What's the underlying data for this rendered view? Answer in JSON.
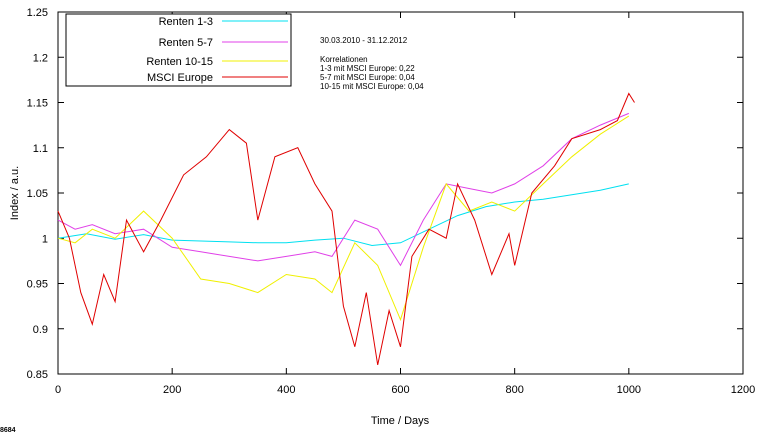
{
  "chart_data": {
    "type": "line",
    "xlabel": "Time / Days",
    "ylabel": "Index / a.u.",
    "xlim": [
      0,
      1200
    ],
    "ylim": [
      0.85,
      1.25
    ],
    "x_ticks": [
      0,
      200,
      400,
      600,
      800,
      1000,
      1200
    ],
    "y_ticks": [
      0.85,
      0.9,
      0.95,
      1,
      1.05,
      1.1,
      1.15,
      1.2,
      1.25
    ],
    "x_tick_labels": [
      "0",
      "200",
      "400",
      "600",
      "800",
      "1000",
      "1200"
    ],
    "y_tick_labels": [
      "0.85",
      "0.9",
      "0.95",
      "1",
      "1.05",
      "1.1",
      "1.15",
      "1.2",
      "1.25"
    ],
    "grid": false,
    "legend_position": "top-left",
    "annotations": {
      "date_range": "30.03.2010 - 31.12.2012",
      "heading": "Korrelationen",
      "lines": [
        "1-3 mit MSCI Europe: 0,22",
        "5-7 mit MSCI Europe: 0,04",
        "10-15 mit MSCI Europe: 0,04"
      ]
    },
    "corner_label": "8684",
    "series": [
      {
        "name": "Renten 1-3",
        "color": "#00e0f0",
        "x": [
          0,
          50,
          100,
          150,
          200,
          250,
          300,
          350,
          400,
          450,
          500,
          550,
          600,
          650,
          700,
          750,
          800,
          850,
          900,
          950,
          1000
        ],
        "y": [
          1.0,
          1.005,
          0.999,
          1.004,
          0.998,
          0.997,
          0.996,
          0.995,
          0.995,
          0.998,
          1.0,
          0.992,
          0.995,
          1.01,
          1.025,
          1.035,
          1.04,
          1.043,
          1.048,
          1.053,
          1.06
        ]
      },
      {
        "name": "Renten 5-7",
        "color": "#e040e8",
        "x": [
          0,
          30,
          60,
          100,
          150,
          200,
          250,
          300,
          350,
          400,
          450,
          480,
          520,
          560,
          600,
          640,
          680,
          720,
          760,
          800,
          850,
          900,
          950,
          1000
        ],
        "y": [
          1.02,
          1.01,
          1.015,
          1.005,
          1.01,
          0.99,
          0.985,
          0.98,
          0.975,
          0.98,
          0.985,
          0.98,
          1.02,
          1.01,
          0.97,
          1.02,
          1.06,
          1.055,
          1.05,
          1.06,
          1.08,
          1.11,
          1.125,
          1.138
        ]
      },
      {
        "name": "Renten 10-15",
        "color": "#f0f000",
        "x": [
          0,
          30,
          60,
          100,
          150,
          200,
          250,
          300,
          350,
          400,
          450,
          480,
          520,
          560,
          600,
          640,
          680,
          720,
          760,
          800,
          850,
          900,
          950,
          1000
        ],
        "y": [
          1.0,
          0.995,
          1.01,
          1.0,
          1.03,
          1.0,
          0.955,
          0.95,
          0.94,
          0.96,
          0.955,
          0.94,
          0.995,
          0.97,
          0.91,
          0.99,
          1.06,
          1.03,
          1.04,
          1.03,
          1.06,
          1.09,
          1.115,
          1.135
        ]
      },
      {
        "name": "MSCI Europe",
        "color": "#e00000",
        "x": [
          0,
          20,
          40,
          60,
          80,
          100,
          120,
          150,
          180,
          220,
          260,
          300,
          330,
          350,
          380,
          420,
          450,
          480,
          500,
          520,
          540,
          560,
          580,
          600,
          620,
          650,
          680,
          700,
          730,
          760,
          790,
          800,
          830,
          870,
          900,
          950,
          980,
          1000,
          1010
        ],
        "y": [
          1.03,
          1.0,
          0.94,
          0.905,
          0.96,
          0.93,
          1.02,
          0.985,
          1.02,
          1.07,
          1.09,
          1.12,
          1.105,
          1.02,
          1.09,
          1.1,
          1.06,
          1.03,
          0.925,
          0.88,
          0.94,
          0.86,
          0.92,
          0.88,
          0.98,
          1.01,
          1.0,
          1.06,
          1.02,
          0.96,
          1.005,
          0.97,
          1.05,
          1.08,
          1.11,
          1.12,
          1.13,
          1.16,
          1.15
        ]
      }
    ]
  }
}
